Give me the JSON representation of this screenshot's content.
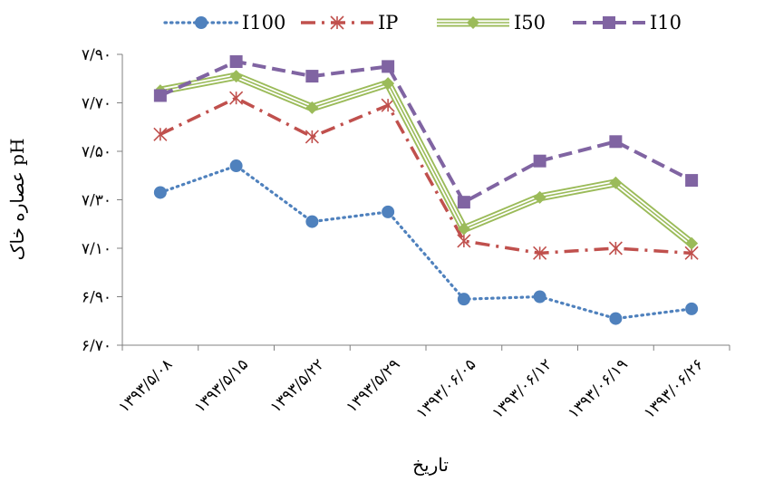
{
  "chart_data": {
    "type": "line",
    "title": "",
    "xlabel": "تاریخ",
    "ylabel": "pH عصاره خاک",
    "categories": [
      "۱۳۹۳/۵/۰۸",
      "۱۳۹۳/۵/۱۵",
      "۱۳۹۳/۵/۲۲",
      "۱۳۹۳/۵/۲۹",
      "۱۳۹۳/۰۶/۰۵",
      "۱۳۹۳/۰۶/۱۲",
      "۱۳۹۳/۰۶/۱۹",
      "۱۳۹۳/۰۶/۲۶"
    ],
    "ylim": [
      6.7,
      7.9
    ],
    "yticks": [
      6.7,
      6.9,
      7.1,
      7.3,
      7.5,
      7.7,
      7.9
    ],
    "ytick_labels": [
      "۶/۷۰",
      "۶/۹۰",
      "۷/۱۰",
      "۷/۳۰",
      "۷/۵۰",
      "۷/۷۰",
      "۷/۹۰"
    ],
    "grid": false,
    "legend_position": "top",
    "series": [
      {
        "name": "I100",
        "color": "#4F81BD",
        "line": "dotted",
        "marker": "circle",
        "values": [
          7.33,
          7.44,
          7.21,
          7.25,
          6.89,
          6.9,
          6.81,
          6.85
        ]
      },
      {
        "name": "IP",
        "color": "#C0504D",
        "line": "dashdot",
        "marker": "star",
        "values": [
          7.57,
          7.72,
          7.56,
          7.69,
          7.13,
          7.08,
          7.1,
          7.08
        ]
      },
      {
        "name": "I50",
        "color": "#9BBB59",
        "line": "triple",
        "marker": "diamond",
        "values": [
          7.75,
          7.81,
          7.68,
          7.78,
          7.18,
          7.31,
          7.37,
          7.12
        ]
      },
      {
        "name": "I10",
        "color": "#8064A2",
        "line": "dashed",
        "marker": "square",
        "values": [
          7.73,
          7.87,
          7.81,
          7.85,
          7.29,
          7.46,
          7.54,
          7.38
        ]
      }
    ]
  }
}
